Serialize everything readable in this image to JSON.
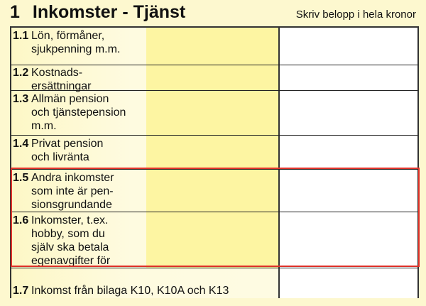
{
  "header": {
    "section_number": "1",
    "title": "Inkomster - Tjänst",
    "hint": "Skriv belopp i hela kronor"
  },
  "rows": [
    {
      "number": "1.1",
      "label": "Lön, förmåner,\nsjukpenning m.m.",
      "value": ""
    },
    {
      "number": "1.2",
      "label": "Kostnads-\nersättningar",
      "value": ""
    },
    {
      "number": "1.3",
      "label": "Allmän pension\noch tjänstepension\nm.m.",
      "value": ""
    },
    {
      "number": "1.4",
      "label": "Privat pension\noch livränta",
      "value": ""
    },
    {
      "number": "1.5",
      "label": "Andra inkomster\nsom inte är pen-\nsionsgrundande",
      "value": ""
    },
    {
      "number": "1.6",
      "label": "Inkomster, t.ex.\nhobby, som du\nsjälv ska betala\negenavgifter för",
      "value": ""
    },
    {
      "number": "1.7",
      "label": "Inkomst från bilaga K10, K10A och K13",
      "value": ""
    }
  ],
  "highlight_color": "#e0322a"
}
